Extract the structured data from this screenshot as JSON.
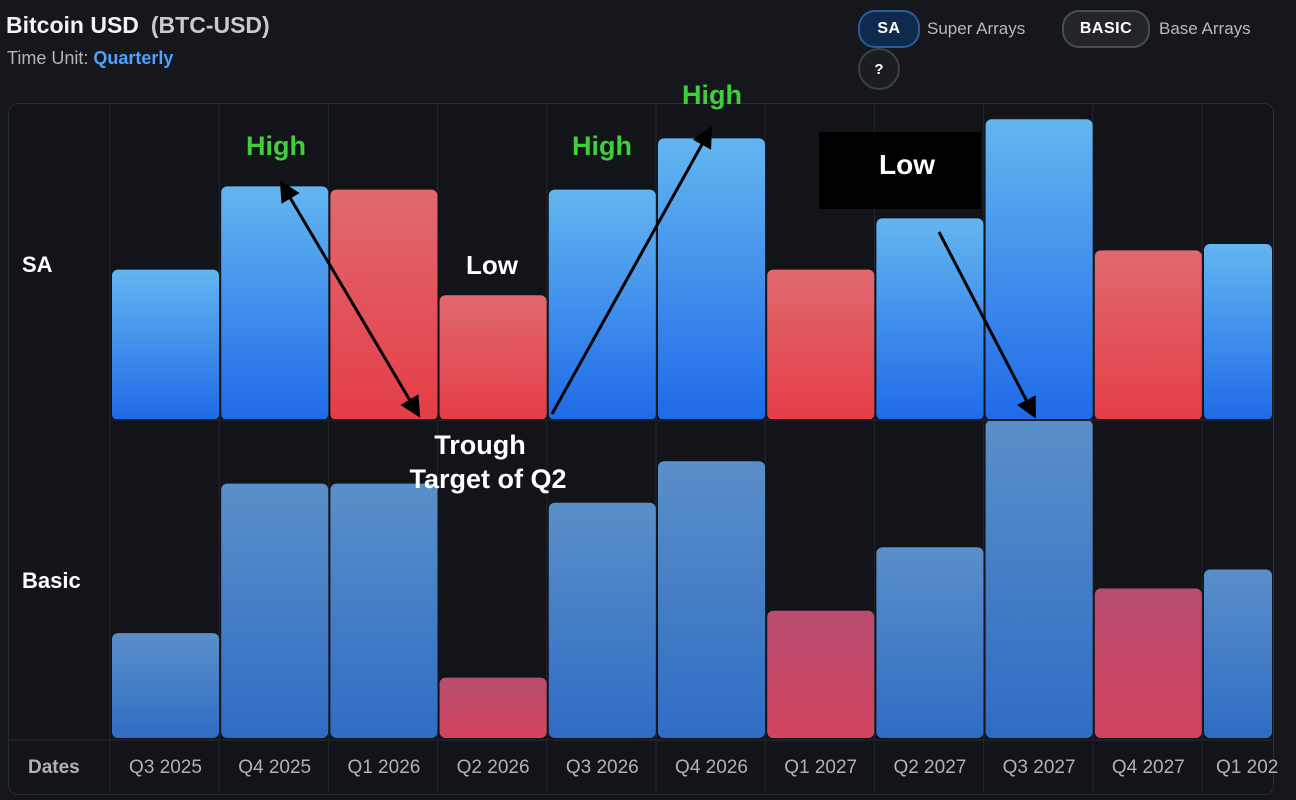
{
  "header": {
    "title": "Bitcoin USD",
    "ticker": "(BTC-USD)",
    "time_unit_label": "Time Unit:",
    "time_unit_value": "Quarterly"
  },
  "legend": {
    "sa_pill": "SA",
    "sa_text": "Super Arrays",
    "basic_pill": "BASIC",
    "basic_text": "Base Arrays",
    "help": "?"
  },
  "colors": {
    "up": "#2f86f0",
    "down": "#e54a52",
    "basic_up": "#3f79c6",
    "basic_down": "#c04a72",
    "high_text": "#3ecf3a"
  },
  "chart_data": {
    "type": "bar",
    "x_header": "Dates",
    "categories": [
      "Q3 2025",
      "Q4 2025",
      "Q1 2026",
      "Q2 2026",
      "Q3 2026",
      "Q4 2026",
      "Q1 2027",
      "Q2 2027",
      "Q3 2027",
      "Q4 2027",
      "Q1 202"
    ],
    "series": [
      {
        "name": "SA",
        "values": [
          47,
          73,
          72,
          39,
          72,
          88,
          47,
          63,
          94,
          53,
          55
        ],
        "direction": [
          "up",
          "up",
          "down",
          "down",
          "up",
          "up",
          "down",
          "up",
          "up",
          "down",
          "up"
        ]
      },
      {
        "name": "Basic",
        "values": [
          33,
          80,
          80,
          19,
          74,
          87,
          40,
          60,
          100,
          47,
          53
        ],
        "direction": [
          "up",
          "up",
          "up",
          "down",
          "up",
          "up",
          "down",
          "up",
          "up",
          "down",
          "up"
        ]
      }
    ],
    "ylim": [
      0,
      100
    ],
    "annotations": [
      {
        "text": "High",
        "color": "green"
      },
      {
        "text": "High",
        "color": "green"
      },
      {
        "text": "High",
        "color": "green"
      },
      {
        "text": "Low",
        "color": "white"
      },
      {
        "text": "Low",
        "color": "white",
        "boxed": true
      },
      {
        "text": "Trough",
        "color": "white"
      },
      {
        "text": "Target of Q2",
        "color": "white"
      }
    ]
  }
}
